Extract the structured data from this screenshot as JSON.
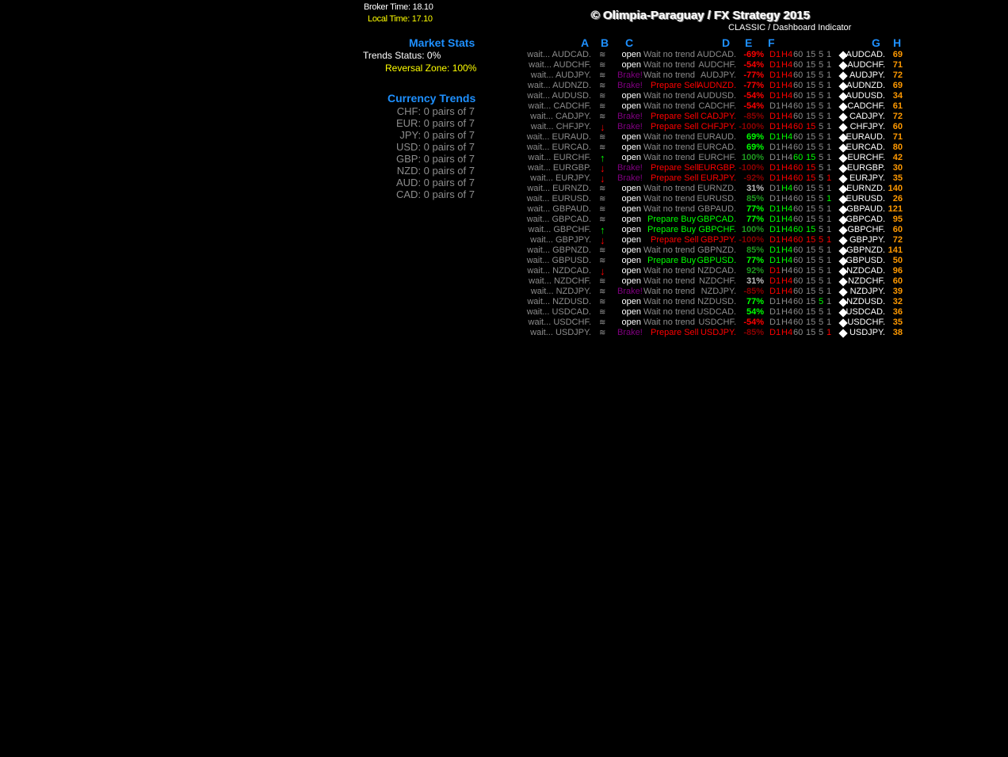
{
  "header": {
    "broker_time": "Broker Time: 18.10",
    "local_time": "Local Time: 17.10",
    "title": "© Olimpia-Paraguay / FX Strategy 2015",
    "subtitle": "CLASSIC / Dashboard Indicator"
  },
  "market_stats": {
    "title": "Market Stats",
    "trends_status": "Trends Status: 0%",
    "reversal_zone": "Reversal Zone: 100%"
  },
  "currency_trends": {
    "title": "Currency Trends",
    "items": [
      "CHF: 0 pairs of 7",
      "EUR: 0 pairs of 7",
      "JPY: 0 pairs of 7",
      "USD: 0 pairs of 7",
      "GBP: 0 pairs of 7",
      "NZD: 0 pairs of 7",
      "AUD: 0 pairs of 7",
      "CAD: 0 pairs of 7"
    ]
  },
  "colors": {
    "red": "#ff0000",
    "dark_red": "#8b0000",
    "lime": "#00ff00",
    "green": "#1f9a1f",
    "silver": "#bdbdbd",
    "grey": "#8c8c8c",
    "purple": "#800080",
    "orange": "#ff9900",
    "blue": "#1e90ff"
  },
  "columns": [
    "A",
    "B",
    "C",
    "D",
    "E",
    "F",
    "G",
    "H"
  ],
  "tf_labels": [
    "D1",
    "H4",
    "60",
    "15",
    "5",
    "1"
  ],
  "rows": [
    {
      "pair": "AUDCAD.",
      "b": "wave",
      "c": "open",
      "status": "Wait no trend",
      "pct": "-69%",
      "pc": "red",
      "tf": "rrgggg",
      "h": "69"
    },
    {
      "pair": "AUDCHF.",
      "b": "wave",
      "c": "open",
      "status": "Wait no trend",
      "pct": "-54%",
      "pc": "red",
      "tf": "rrgggg",
      "h": "71"
    },
    {
      "pair": "AUDJPY.",
      "b": "wave",
      "c": "Brake!",
      "status": "Wait no trend",
      "pct": "-77%",
      "pc": "red",
      "tf": "rrgggg",
      "h": "72"
    },
    {
      "pair": "AUDNZD.",
      "b": "wave",
      "c": "Brake!",
      "status": "Prepare Sell",
      "pct": "-77%",
      "pc": "red",
      "tf": "rrgggg",
      "h": "69"
    },
    {
      "pair": "AUDUSD.",
      "b": "wave",
      "c": "open",
      "status": "Wait no trend",
      "pct": "-54%",
      "pc": "red",
      "tf": "rrgggg",
      "h": "34"
    },
    {
      "pair": "CADCHF.",
      "b": "wave",
      "c": "open",
      "status": "Wait no trend",
      "pct": "-54%",
      "pc": "red",
      "tf": "gggggg",
      "h": "61"
    },
    {
      "pair": "CADJPY.",
      "b": "wave",
      "c": "Brake!",
      "status": "Prepare Sell",
      "pct": "-85%",
      "pc": "dark_red",
      "tf": "rrgggg",
      "h": "72"
    },
    {
      "pair": "CHFJPY.",
      "b": "down",
      "c": "Brake!",
      "status": "Prepare Sell",
      "pct": "-100%",
      "pc": "dark_red",
      "tf": "rrrrgg",
      "h": "60"
    },
    {
      "pair": "EURAUD.",
      "b": "wave",
      "c": "open",
      "status": "Wait no trend",
      "pct": "69%",
      "pc": "lime",
      "tf": "GGgggg",
      "h": "71"
    },
    {
      "pair": "EURCAD.",
      "b": "wave",
      "c": "open",
      "status": "Wait no trend",
      "pct": "69%",
      "pc": "lime",
      "tf": "gggggg",
      "h": "80"
    },
    {
      "pair": "EURCHF.",
      "b": "up",
      "c": "open",
      "status": "Wait no trend",
      "pct": "100%",
      "pc": "green",
      "tf": "ggGGgg",
      "h": "42"
    },
    {
      "pair": "EURGBP.",
      "b": "down",
      "c": "Brake!",
      "status": "Prepare Sell",
      "pct": "-100%",
      "pc": "dark_red",
      "tf": "rrrrgg",
      "h": "30"
    },
    {
      "pair": "EURJPY.",
      "b": "down",
      "c": "Brake!",
      "status": "Prepare Sell",
      "pct": "-92%",
      "pc": "dark_red",
      "tf": "rrrrgr",
      "h": "35"
    },
    {
      "pair": "EURNZD.",
      "b": "wave",
      "c": "open",
      "status": "Wait no trend",
      "pct": "31%",
      "pc": "silver",
      "tf": "gGgggg",
      "h": "140"
    },
    {
      "pair": "EURUSD.",
      "b": "wave",
      "c": "open",
      "status": "Wait no trend",
      "pct": "85%",
      "pc": "green",
      "tf": "gggggG",
      "h": "26"
    },
    {
      "pair": "GBPAUD.",
      "b": "wave",
      "c": "open",
      "status": "Wait no trend",
      "pct": "77%",
      "pc": "lime",
      "tf": "GGgggg",
      "h": "121"
    },
    {
      "pair": "GBPCAD.",
      "b": "wave",
      "c": "open",
      "status": "Prepare Buy",
      "pct": "77%",
      "pc": "lime",
      "tf": "GGgggg",
      "h": "95"
    },
    {
      "pair": "GBPCHF.",
      "b": "up",
      "c": "open",
      "status": "Prepare Buy",
      "pct": "100%",
      "pc": "green",
      "tf": "GGGGgg",
      "h": "60"
    },
    {
      "pair": "GBPJPY.",
      "b": "down",
      "c": "open",
      "status": "Prepare Sell",
      "pct": "-100%",
      "pc": "dark_red",
      "tf": "rrrrrr",
      "h": "72"
    },
    {
      "pair": "GBPNZD.",
      "b": "wave",
      "c": "open",
      "status": "Wait no trend",
      "pct": "85%",
      "pc": "green",
      "tf": "GGgggg",
      "h": "141"
    },
    {
      "pair": "GBPUSD.",
      "b": "wave",
      "c": "open",
      "status": "Prepare Buy",
      "pct": "77%",
      "pc": "lime",
      "tf": "GGgggg",
      "h": "50"
    },
    {
      "pair": "NZDCAD.",
      "b": "down",
      "c": "open",
      "status": "Wait no trend",
      "pct": "92%",
      "pc": "green",
      "tf": "rggggg",
      "h": "96"
    },
    {
      "pair": "NZDCHF.",
      "b": "wave",
      "c": "open",
      "status": "Wait no trend",
      "pct": "31%",
      "pc": "silver",
      "tf": "rrgggg",
      "h": "60"
    },
    {
      "pair": "NZDJPY.",
      "b": "wave",
      "c": "Brake!",
      "status": "Wait no trend",
      "pct": "-85%",
      "pc": "dark_red",
      "tf": "rrgggg",
      "h": "39"
    },
    {
      "pair": "NZDUSD.",
      "b": "wave",
      "c": "open",
      "status": "Wait no trend",
      "pct": "77%",
      "pc": "lime",
      "tf": "ggggGg",
      "h": "32"
    },
    {
      "pair": "USDCAD.",
      "b": "wave",
      "c": "open",
      "status": "Wait no trend",
      "pct": "54%",
      "pc": "lime",
      "tf": "gggggg",
      "h": "36"
    },
    {
      "pair": "USDCHF.",
      "b": "wave",
      "c": "open",
      "status": "Wait no trend",
      "pct": "-54%",
      "pc": "red",
      "tf": "gggggg",
      "h": "35"
    },
    {
      "pair": "USDJPY.",
      "b": "wave",
      "c": "Brake!",
      "status": "Prepare Sell",
      "pct": "-85%",
      "pc": "dark_red",
      "tf": "rrgggr",
      "h": "38"
    }
  ],
  "wait_prefix": "wait...",
  "icons": {
    "wave": "wave-icon",
    "up": "arrow-up-icon",
    "down": "arrow-down-icon",
    "diamond": "diamond-icon"
  }
}
